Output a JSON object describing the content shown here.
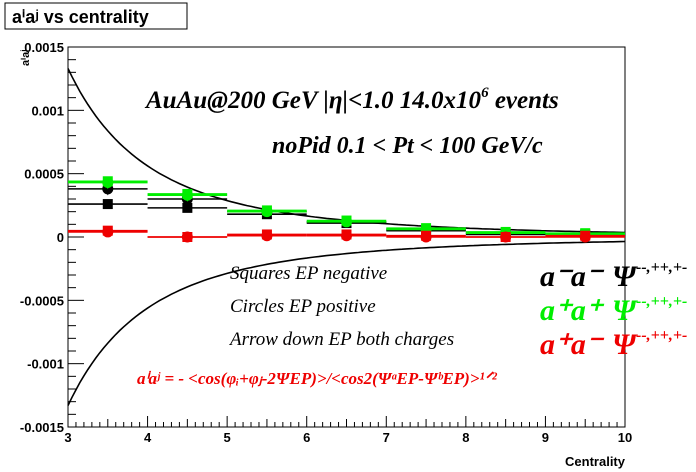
{
  "chart_data": {
    "type": "scatter",
    "title": "aⁱaʲ vs centrality",
    "xlabel": "Centrality",
    "ylabel": "aⁱaʲ",
    "xlim": [
      3,
      10
    ],
    "ylim": [
      -0.0015,
      0.0015
    ],
    "x_ticks": [
      "3",
      "4",
      "5",
      "6",
      "7",
      "8",
      "9",
      "10"
    ],
    "y_ticks": [
      "-0.0015",
      "-0.001",
      "-0.0005",
      "0",
      "0.0005",
      "0.001",
      "0.0015"
    ],
    "x_tick_values": [
      3,
      4,
      5,
      6,
      7,
      8,
      9,
      10
    ],
    "y_tick_values": [
      -0.0015,
      -0.001,
      -0.0005,
      0,
      0.0005,
      0.001,
      0.0015
    ],
    "grid": false,
    "annotations": {
      "line1": "AuAu@200 GeV |η|<1.0 14.0x10",
      "line1_sup": "6",
      "line1_end": " events",
      "line2": "noPid 0.1 < Pt < 100 GeV/c",
      "legend_squares": "Squares EP negative",
      "legend_circles": "Circles EP positive",
      "legend_arrows": "Arrow down EP both charges",
      "formula": "aⁱaʲ = - <cos(φᵢ+φⱼ-2ΨEP)>/<cos2(ΨᵃEP-ΨᵇEP)>¹ᐟ²"
    },
    "series_labels": [
      {
        "pair": "a⁻a⁻",
        "psi": "Ψ",
        "sup": "--,++,+-",
        "color": "#000000"
      },
      {
        "pair": "a⁺a⁺",
        "psi": "Ψ",
        "sup": "--,++,+-",
        "color": "#00ee00"
      },
      {
        "pair": "a⁺a⁻",
        "psi": "Ψ",
        "sup": "--,++,+-",
        "color": "#ee0000"
      }
    ],
    "series": [
      {
        "color": "#000000",
        "x": [
          3.5,
          4.5,
          5.5,
          6.5,
          7.5,
          8.5,
          9.5
        ],
        "squares": [
          0.00026,
          0.00023,
          0.00018,
          0.00011,
          5e-05,
          2e-05,
          2e-05
        ],
        "circles": [
          0.00038,
          0.0003,
          0.0002,
          0.00012,
          6e-05,
          3e-05,
          2e-05
        ],
        "arrows": [
          0.00036,
          0.00029,
          0.00019,
          0.00011,
          5e-05,
          2e-05,
          1e-05
        ]
      },
      {
        "color": "#00ee00",
        "x": [
          3.5,
          4.5,
          5.5,
          6.5,
          7.5,
          8.5,
          9.5
        ],
        "squares": [
          0.00044,
          0.00034,
          0.00021,
          0.00013,
          7e-05,
          4e-05,
          3e-05
        ],
        "circles": [
          0.00043,
          0.00033,
          0.0002,
          0.00012,
          6e-05,
          3e-05,
          2e-05
        ],
        "arrows": [
          0.00041,
          0.00031,
          0.00019,
          0.00011,
          5e-05,
          2e-05,
          2e-05
        ]
      },
      {
        "color": "#ee0000",
        "x": [
          3.5,
          4.5,
          5.5,
          6.5,
          7.5,
          8.5,
          9.5
        ],
        "squares": [
          5e-05,
          0.0,
          2e-05,
          2e-05,
          1e-05,
          0.0,
          1e-05
        ],
        "circles": [
          4e-05,
          0.0,
          1e-05,
          1e-05,
          0.0,
          0.0,
          0.0
        ],
        "arrows": [
          4e-05,
          0.0,
          1e-05,
          1e-05,
          0.0,
          0.0,
          0.0
        ]
      }
    ],
    "envelope": {
      "color": "#000000",
      "x_start": 3.0,
      "y_at_start": 0.00133
    }
  }
}
